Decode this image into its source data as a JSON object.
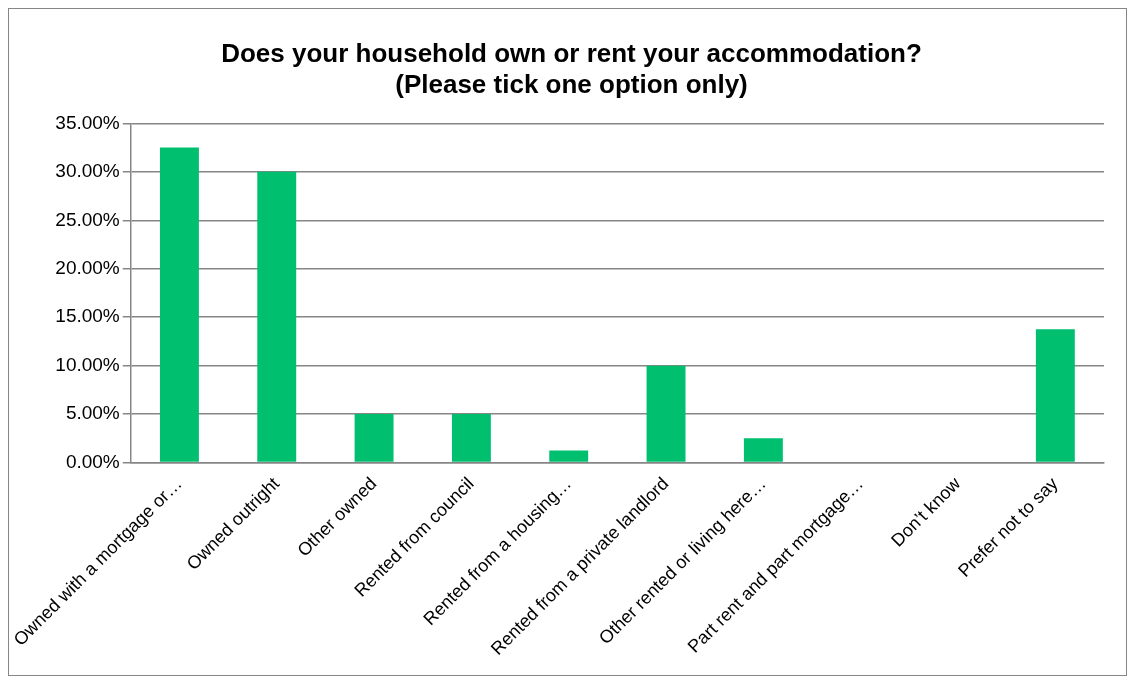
{
  "chart_data": {
    "type": "bar",
    "title": [
      "Does your household own or rent your accommodation?",
      "(Please tick one option only)"
    ],
    "categories": [
      "Owned with a mortgage or…",
      "Owned outright",
      "Other owned",
      "Rented from council",
      "Rented from a housing…",
      "Rented from a private landlord",
      "Other rented or living here…",
      "Part rent and part mortgage…",
      "Don’t know",
      "Prefer not to say"
    ],
    "values": [
      32.5,
      30,
      5,
      5,
      1.25,
      10,
      2.5,
      0,
      0,
      13.75
    ],
    "color": "#00bf6f",
    "ylim": [
      0,
      35
    ],
    "yticks": [
      {
        "value": 0,
        "label": "0.00%"
      },
      {
        "value": 5,
        "label": "5.00%"
      },
      {
        "value": 10,
        "label": "10.00%"
      },
      {
        "value": 15,
        "label": "15.00%"
      },
      {
        "value": 20,
        "label": "20.00%"
      },
      {
        "value": 25,
        "label": "25.00%"
      },
      {
        "value": 30,
        "label": "30.00%"
      },
      {
        "value": 35,
        "label": "35.00%"
      }
    ],
    "grid": "y",
    "legend": false
  }
}
